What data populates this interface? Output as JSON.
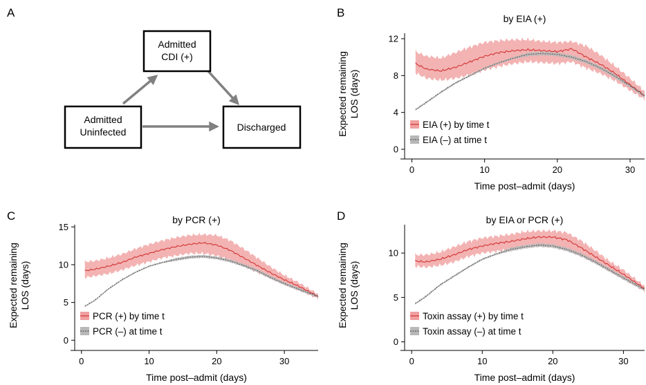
{
  "panel_labels": {
    "A": "A",
    "B": "B",
    "C": "C",
    "D": "D"
  },
  "diagram": {
    "nodes": {
      "cdi": [
        "Admitted",
        "CDI (+)"
      ],
      "uninfected": [
        "Admitted",
        "Uninfected"
      ],
      "discharged": [
        "Discharged"
      ]
    },
    "edges": [
      {
        "from": "uninfected",
        "to": "cdi"
      },
      {
        "from": "cdi",
        "to": "discharged"
      },
      {
        "from": "uninfected",
        "to": "discharged"
      }
    ]
  },
  "colors": {
    "positive_line": "#d43c3c",
    "positive_band": "#f0a0a0",
    "negative_line": "#555555",
    "negative_band": "#b8b8b8",
    "arrow": "#808080"
  },
  "chart_data": [
    {
      "type": "line",
      "panel": "B",
      "title": "by EIA (+)",
      "xlabel": "Time post–admit (days)",
      "ylabel": [
        "Expected remaining",
        "LOS (days)"
      ],
      "xlim": [
        -1,
        32
      ],
      "ylim": [
        -0.6,
        12.6
      ],
      "xticks": [
        0,
        10,
        20,
        30
      ],
      "yticks": [
        0,
        4,
        8,
        12
      ],
      "legend_position": "bottom-left",
      "series": [
        {
          "name": "EIA (+) by time t",
          "style": "positive",
          "x": [
            0.5,
            2,
            4,
            6,
            8,
            10,
            12,
            14,
            16,
            18,
            20,
            22,
            24,
            26,
            28,
            30,
            32
          ],
          "y": [
            9.3,
            8.7,
            8.5,
            8.9,
            9.5,
            10.1,
            10.5,
            10.7,
            10.8,
            10.7,
            10.6,
            10.9,
            10.0,
            9.2,
            8.2,
            7.0,
            5.8
          ],
          "lower": [
            8.3,
            7.7,
            7.5,
            7.7,
            8.1,
            8.6,
            9.0,
            9.3,
            9.5,
            9.4,
            9.3,
            9.5,
            8.8,
            8.2,
            7.4,
            6.4,
            5.4
          ],
          "upper": [
            10.6,
            10.1,
            9.9,
            10.5,
            11.1,
            11.6,
            11.8,
            11.9,
            11.9,
            11.7,
            11.6,
            11.7,
            11.2,
            10.2,
            9.0,
            7.7,
            6.3
          ]
        },
        {
          "name": "EIA (–) at time t",
          "style": "negative",
          "x": [
            0.5,
            2,
            4,
            6,
            8,
            10,
            12,
            14,
            16,
            18,
            20,
            22,
            24,
            26,
            28,
            30,
            32
          ],
          "y": [
            4.3,
            5.1,
            6.2,
            7.2,
            8.0,
            8.8,
            9.4,
            9.9,
            10.3,
            10.4,
            10.3,
            10.0,
            9.5,
            8.8,
            7.9,
            6.9,
            5.8
          ],
          "lower": [
            4.2,
            5.0,
            6.1,
            7.1,
            7.9,
            8.7,
            9.3,
            9.8,
            10.1,
            10.2,
            10.1,
            9.8,
            9.3,
            8.6,
            7.7,
            6.7,
            5.6
          ],
          "upper": [
            4.4,
            5.2,
            6.3,
            7.3,
            8.1,
            8.9,
            9.5,
            10.0,
            10.5,
            10.6,
            10.5,
            10.2,
            9.7,
            9.0,
            8.1,
            7.1,
            6.0
          ]
        }
      ]
    },
    {
      "type": "line",
      "panel": "C",
      "title": "by PCR (+)",
      "xlabel": "Time post–admit (days)",
      "ylabel": [
        "Expected remaining",
        "LOS (days)"
      ],
      "xlim": [
        -1,
        35
      ],
      "ylim": [
        -0.8,
        15.3
      ],
      "xticks": [
        0,
        10,
        20,
        30
      ],
      "yticks": [
        0,
        5,
        10,
        15
      ],
      "legend_position": "bottom-left",
      "series": [
        {
          "name": "PCR (+) by time t",
          "style": "positive",
          "x": [
            0.5,
            2,
            4,
            6,
            8,
            10,
            12,
            14,
            16,
            18,
            20,
            22,
            24,
            26,
            28,
            30,
            32,
            35
          ],
          "y": [
            9.2,
            9.4,
            9.8,
            10.3,
            11.0,
            11.5,
            12.0,
            12.4,
            12.7,
            12.9,
            12.6,
            11.9,
            10.9,
            9.9,
            8.9,
            8.0,
            7.2,
            5.8
          ],
          "lower": [
            8.3,
            8.5,
            8.8,
            9.3,
            9.9,
            10.4,
            10.9,
            11.2,
            11.5,
            11.5,
            11.2,
            10.6,
            9.8,
            9.0,
            8.2,
            7.4,
            6.7,
            5.5
          ],
          "upper": [
            10.4,
            10.5,
            10.9,
            11.4,
            12.1,
            12.7,
            13.2,
            13.6,
            13.9,
            14.0,
            13.9,
            13.2,
            12.1,
            10.9,
            9.7,
            8.6,
            7.7,
            6.1
          ]
        },
        {
          "name": "PCR (–) at time t",
          "style": "negative",
          "x": [
            0.5,
            2,
            4,
            6,
            8,
            10,
            12,
            14,
            16,
            18,
            20,
            22,
            24,
            26,
            28,
            30,
            32,
            35
          ],
          "y": [
            4.5,
            5.3,
            6.8,
            8.0,
            9.0,
            9.8,
            10.3,
            10.7,
            11.0,
            11.1,
            10.9,
            10.5,
            9.9,
            9.2,
            8.3,
            7.5,
            6.8,
            5.8
          ],
          "lower": [
            4.4,
            5.2,
            6.7,
            7.9,
            8.9,
            9.7,
            10.2,
            10.5,
            10.8,
            10.9,
            10.7,
            10.3,
            9.7,
            9.0,
            8.1,
            7.3,
            6.6,
            5.6
          ],
          "upper": [
            4.6,
            5.4,
            6.9,
            8.1,
            9.1,
            9.9,
            10.4,
            10.9,
            11.2,
            11.3,
            11.1,
            10.7,
            10.1,
            9.4,
            8.5,
            7.7,
            7.0,
            6.0
          ]
        }
      ]
    },
    {
      "type": "line",
      "panel": "D",
      "title": "by EIA or PCR (+)",
      "xlabel": "Time post–admit (days)",
      "ylabel": [
        "Expected remaining",
        "LOS (days)"
      ],
      "xlim": [
        -1,
        33
      ],
      "ylim": [
        -0.5,
        13.2
      ],
      "xticks": [
        0,
        10,
        20,
        30
      ],
      "yticks": [
        0,
        5,
        10
      ],
      "legend_position": "bottom-left",
      "series": [
        {
          "name": "Toxin assay (+) by time t",
          "style": "positive",
          "x": [
            0.5,
            2,
            4,
            6,
            8,
            10,
            12,
            14,
            16,
            18,
            20,
            22,
            24,
            26,
            28,
            30,
            33
          ],
          "y": [
            9.1,
            9.0,
            9.3,
            9.8,
            10.4,
            10.8,
            11.1,
            11.3,
            11.6,
            11.8,
            11.8,
            11.5,
            10.6,
            9.6,
            8.6,
            7.6,
            6.0
          ],
          "lower": [
            8.5,
            8.4,
            8.6,
            9.0,
            9.6,
            10.0,
            10.2,
            10.4,
            10.7,
            10.8,
            10.7,
            10.4,
            9.7,
            8.9,
            8.0,
            7.1,
            5.7
          ],
          "upper": [
            9.8,
            9.8,
            10.1,
            10.7,
            11.3,
            11.7,
            11.9,
            12.1,
            12.4,
            12.5,
            12.5,
            12.3,
            11.4,
            10.3,
            9.1,
            8.1,
            6.3
          ]
        },
        {
          "name": "Toxin assay (–) at time t",
          "style": "negative",
          "x": [
            0.5,
            2,
            4,
            6,
            8,
            10,
            12,
            14,
            16,
            18,
            20,
            22,
            24,
            26,
            28,
            30,
            33
          ],
          "y": [
            4.3,
            5.1,
            6.4,
            7.4,
            8.4,
            9.3,
            9.9,
            10.4,
            10.7,
            10.9,
            10.8,
            10.4,
            9.8,
            9.0,
            8.1,
            7.2,
            5.9
          ],
          "lower": [
            4.2,
            5.0,
            6.3,
            7.3,
            8.3,
            9.2,
            9.8,
            10.2,
            10.5,
            10.7,
            10.6,
            10.2,
            9.6,
            8.8,
            7.9,
            7.0,
            5.7
          ],
          "upper": [
            4.4,
            5.2,
            6.5,
            7.5,
            8.5,
            9.4,
            10.0,
            10.6,
            10.9,
            11.1,
            11.0,
            10.6,
            10.0,
            9.2,
            8.3,
            7.4,
            6.1
          ]
        }
      ]
    }
  ]
}
